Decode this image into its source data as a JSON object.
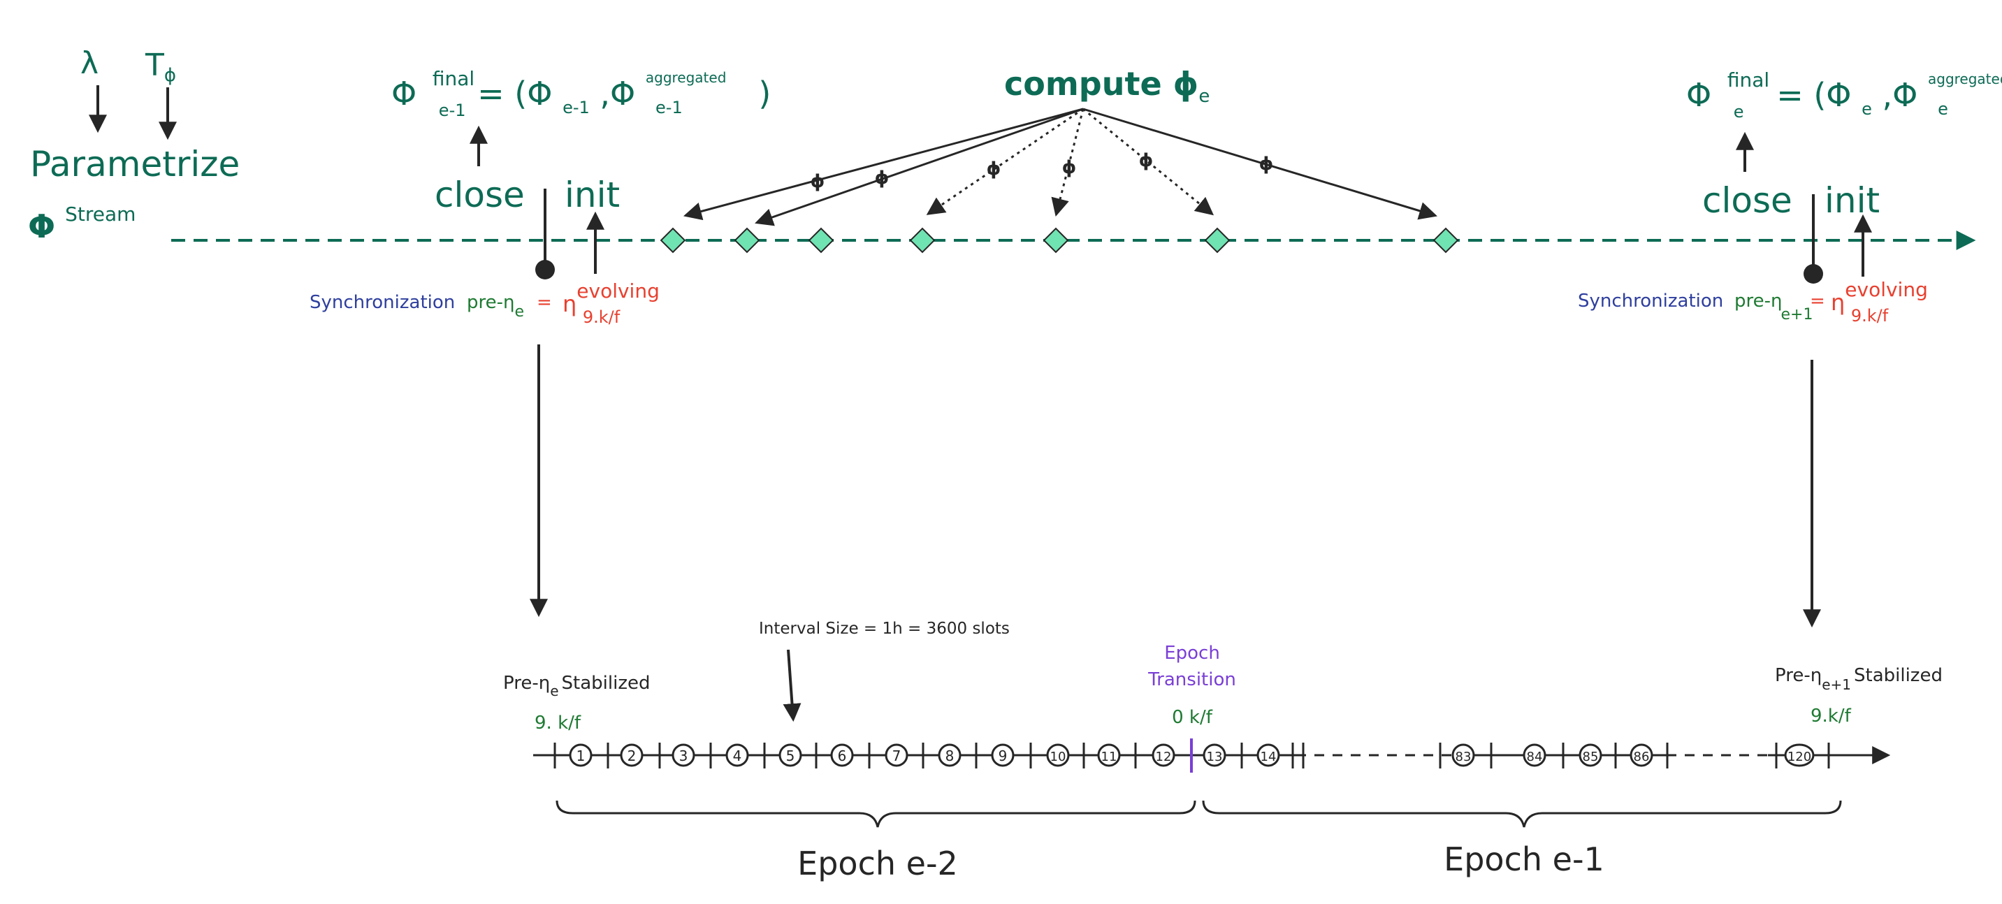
{
  "colors": {
    "teal": "#0d6b55",
    "green": "#1e7a32",
    "red": "#e8402f",
    "blue": "#2e3f9e",
    "purple": "#7a3fd6",
    "dark": "#262626",
    "diamond": "#6fe3b2"
  },
  "params": {
    "lambda": "λ",
    "t": "T",
    "t_sub": "ϕ",
    "parametrize": "Parametrize",
    "stream_phi": "Φ",
    "stream_sup": "Stream"
  },
  "left_final": {
    "phi": "Φ",
    "sup": "final",
    "sub": "e-1",
    "eq_open": "= (Φ",
    "inner_sub": "e-1",
    "comma_phi": ",Φ",
    "agg_sup": "aggregated",
    "agg_sub": "e-1",
    "close_paren": ")"
  },
  "right_final": {
    "phi": "Φ",
    "sup": "final",
    "sub": "e",
    "eq_open": "= (Φ",
    "inner_sub": "e",
    "comma_phi": ",Φ",
    "agg_sup": "aggregated",
    "agg_sub": "e",
    "close_paren": ")"
  },
  "labels": {
    "close": "close",
    "init": "init",
    "compute": "compute ϕ",
    "compute_sub": "e",
    "phi_small": "ϕ",
    "synchronization": "Synchronization",
    "pre_eta": "pre-η",
    "eq": "=",
    "eta": "η",
    "evolving": "evolving",
    "kf": "9.k/f"
  },
  "sync_left": {
    "sub": "e"
  },
  "sync_right": {
    "sub": "e+1"
  },
  "timeline": {
    "interval_label": "Interval Size = 1h = 3600 slots",
    "epoch_transition_line1": "Epoch",
    "epoch_transition_line2": "Transition",
    "transition_kf": "0 k/f",
    "left_stabilized_pre": "Pre-η",
    "left_stabilized_sub": "e",
    "left_stabilized_post": "Stabilized",
    "left_kf": "9. k/f",
    "right_stabilized_pre": "Pre-η",
    "right_stabilized_sub": "e+1",
    "right_stabilized_post": "Stabilized",
    "right_kf": "9.k/f",
    "slots": [
      "1",
      "2",
      "3",
      "4",
      "5",
      "6",
      "7",
      "8",
      "9",
      "10",
      "11",
      "12",
      "13",
      "14",
      "83",
      "84",
      "85",
      "86",
      "120"
    ],
    "epoch_left": "Epoch e-2",
    "epoch_right": "Epoch e-1"
  }
}
